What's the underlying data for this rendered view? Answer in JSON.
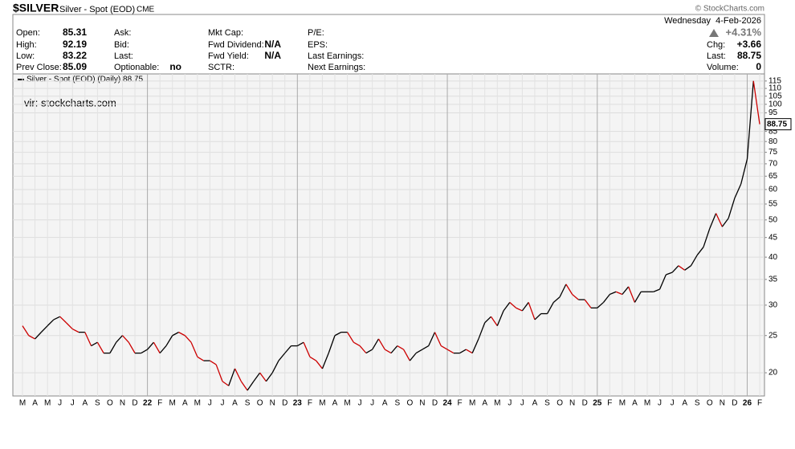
{
  "header": {
    "symbol": "$SILVER",
    "name": "Silver - Spot (EOD)",
    "exchange": "CME",
    "watermark": "© StockCharts.com",
    "date": "Wednesday  4-Feb-2026",
    "change_pct": "+4.31%",
    "columns": [
      [
        {
          "label": "Open:",
          "value": "85.31"
        },
        {
          "label": "High:",
          "value": "92.19"
        },
        {
          "label": "Low:",
          "value": "83.22"
        },
        {
          "label": "Prev Close:",
          "value": "85.09"
        }
      ],
      [
        {
          "label": "Ask:"
        },
        {
          "label": "Bid:"
        },
        {
          "label": "Last:"
        },
        {
          "label": "Optionable:",
          "value": "no"
        }
      ],
      [
        {
          "label": "Mkt Cap:"
        },
        {
          "label": "Fwd Dividend:",
          "value": "N/A"
        },
        {
          "label": "Fwd Yield:",
          "value": "N/A"
        },
        {
          "label": "SCTR:"
        }
      ],
      [
        {
          "label": "P/E:"
        },
        {
          "label": "EPS:"
        },
        {
          "label": "Last Earnings:"
        },
        {
          "label": "Next Earnings:"
        }
      ],
      [
        {
          "label": "Chg:",
          "value": "+3.66"
        },
        {
          "label": "Last:",
          "value": "88.75"
        },
        {
          "label": "Volume:",
          "value": "0"
        }
      ]
    ]
  },
  "chart_data": {
    "type": "line",
    "legend": "Silver - Spot (EOD) (Daily) 88.75",
    "annotation": "vir: stockcharts.com",
    "log_scale": true,
    "grid": true,
    "up_color": "#000000",
    "down_color": "#cc0000",
    "ylim": [
      17.4,
      120
    ],
    "yticks": [
      20,
      25,
      30,
      35,
      40,
      45,
      50,
      55,
      60,
      65,
      70,
      75,
      80,
      85,
      95,
      100,
      105,
      110,
      115
    ],
    "categories": [
      "M",
      null,
      "A",
      null,
      "M",
      null,
      "J",
      null,
      "J",
      null,
      "A",
      null,
      "S",
      null,
      "O",
      null,
      "N",
      null,
      "D",
      null,
      "22",
      null,
      "F",
      null,
      "M",
      null,
      "A",
      null,
      "M",
      null,
      "J",
      null,
      "J",
      null,
      "A",
      null,
      "S",
      null,
      "O",
      null,
      "N",
      null,
      "D",
      null,
      "23",
      null,
      "F",
      null,
      "M",
      null,
      "A",
      null,
      "M",
      null,
      "J",
      null,
      "J",
      null,
      "A",
      null,
      "S",
      null,
      "O",
      null,
      "N",
      null,
      "D",
      null,
      "24",
      null,
      "F",
      null,
      "M",
      null,
      "A",
      null,
      "M",
      null,
      "J",
      null,
      "J",
      null,
      "A",
      null,
      "S",
      null,
      "O",
      null,
      "N",
      null,
      "D",
      null,
      "25",
      null,
      "F",
      null,
      "M",
      null,
      "A",
      null,
      "M",
      null,
      "J",
      null,
      "J",
      null,
      "A",
      null,
      "S",
      null,
      "O",
      null,
      "N",
      null,
      "D",
      null,
      "26",
      null,
      "F"
    ],
    "series": [
      {
        "name": "Silver - Spot (EOD)",
        "values": [
          26.5,
          25,
          24.5,
          25.5,
          26.5,
          27.5,
          28,
          27,
          26,
          25.5,
          25.5,
          23.5,
          24,
          22.5,
          22.5,
          24,
          25,
          24,
          22.5,
          22.5,
          23,
          24,
          22.5,
          23.5,
          25,
          25.5,
          25,
          24,
          22,
          21.5,
          21.5,
          21,
          19,
          18.5,
          20.5,
          19,
          18,
          19,
          20,
          19,
          20,
          21.5,
          22.5,
          23.5,
          23.5,
          24,
          22,
          21.5,
          20.5,
          22.5,
          25,
          25.5,
          25.5,
          24,
          23.5,
          22.5,
          23,
          24.5,
          23,
          22.5,
          23.5,
          23,
          21.5,
          22.5,
          23,
          23.5,
          25.5,
          23.5,
          23,
          22.5,
          22.5,
          23,
          22.5,
          24.5,
          27,
          28,
          26.5,
          29,
          30.5,
          29.5,
          29,
          30.5,
          27.5,
          28.5,
          28.5,
          30.5,
          31.5,
          34,
          32,
          31,
          31,
          29.5,
          29.5,
          30.5,
          32,
          32.5,
          32,
          33.5,
          30.5,
          32.5,
          32.5,
          32.5,
          33,
          36,
          36.5,
          38,
          37,
          38,
          40.5,
          42.5,
          47.5,
          52,
          48,
          50.5,
          57,
          62,
          72,
          115,
          88.75
        ]
      }
    ]
  }
}
